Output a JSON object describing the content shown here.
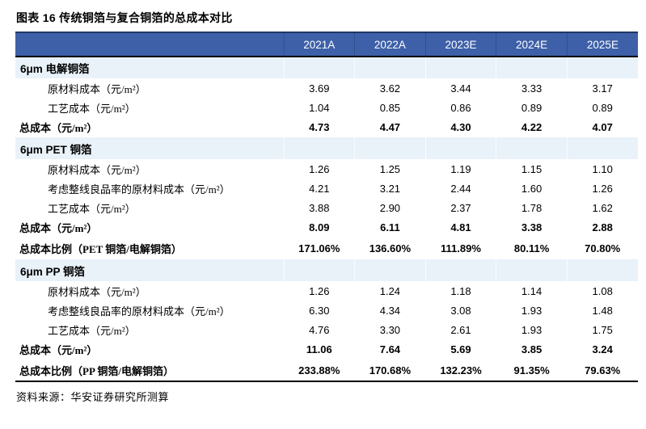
{
  "colors": {
    "header_bg": "#3E60A9",
    "header_border_top": "#1F3864",
    "header_text": "#FFFFFF",
    "section_row_bg": "#E9F1F9",
    "rule_black": "#000000",
    "body_text": "#000000"
  },
  "chart_data": {
    "type": "table",
    "title": "图表 16 传统铜箔与复合铜箔的总成本对比",
    "source": "资料来源：华安证券研究所测算",
    "columns": [
      "2021A",
      "2022A",
      "2023E",
      "2024E",
      "2025E"
    ],
    "rows": [
      {
        "type": "section",
        "label": "6μm 电解铜箔",
        "values": [
          "",
          "",
          "",
          "",
          ""
        ]
      },
      {
        "type": "item",
        "label": "原材料成本（元/m²）",
        "values": [
          "3.69",
          "3.62",
          "3.44",
          "3.33",
          "3.17"
        ]
      },
      {
        "type": "item",
        "label": "工艺成本（元/m²）",
        "values": [
          "1.04",
          "0.85",
          "0.86",
          "0.89",
          "0.89"
        ]
      },
      {
        "type": "total",
        "label": "总成本（元/m²）",
        "values": [
          "4.73",
          "4.47",
          "4.30",
          "4.22",
          "4.07"
        ]
      },
      {
        "type": "section",
        "label": "6μm PET 铜箔",
        "values": [
          "",
          "",
          "",
          "",
          ""
        ]
      },
      {
        "type": "item",
        "label": "原材料成本（元/m²）",
        "values": [
          "1.26",
          "1.25",
          "1.19",
          "1.15",
          "1.10"
        ]
      },
      {
        "type": "item",
        "label": "考虑整线良品率的原材料成本（元/m²）",
        "values": [
          "4.21",
          "3.21",
          "2.44",
          "1.60",
          "1.26"
        ]
      },
      {
        "type": "item",
        "label": "工艺成本（元/m²）",
        "values": [
          "3.88",
          "2.90",
          "2.37",
          "1.78",
          "1.62"
        ]
      },
      {
        "type": "total",
        "label": "总成本（元/m²）",
        "values": [
          "8.09",
          "6.11",
          "4.81",
          "3.38",
          "2.88"
        ]
      },
      {
        "type": "ratio",
        "label": "总成本比例（PET 铜箔/电解铜箔）",
        "values": [
          "171.06%",
          "136.60%",
          "111.89%",
          "80.11%",
          "70.80%"
        ]
      },
      {
        "type": "section",
        "label": "6μm PP 铜箔",
        "values": [
          "",
          "",
          "",
          "",
          ""
        ]
      },
      {
        "type": "item",
        "label": "原材料成本（元/m²）",
        "values": [
          "1.26",
          "1.24",
          "1.18",
          "1.14",
          "1.08"
        ]
      },
      {
        "type": "item",
        "label": "考虑整线良品率的原材料成本（元/m²）",
        "values": [
          "6.30",
          "4.34",
          "3.08",
          "1.93",
          "1.48"
        ]
      },
      {
        "type": "item",
        "label": "工艺成本（元/m²）",
        "values": [
          "4.76",
          "3.30",
          "2.61",
          "1.93",
          "1.75"
        ]
      },
      {
        "type": "total",
        "label": "总成本（元/m²）",
        "values": [
          "11.06",
          "7.64",
          "5.69",
          "3.85",
          "3.24"
        ]
      },
      {
        "type": "ratio",
        "label": "总成本比例（PP 铜箔/电解铜箔）",
        "values": [
          "233.88%",
          "170.68%",
          "132.23%",
          "91.35%",
          "79.63%"
        ]
      }
    ]
  }
}
